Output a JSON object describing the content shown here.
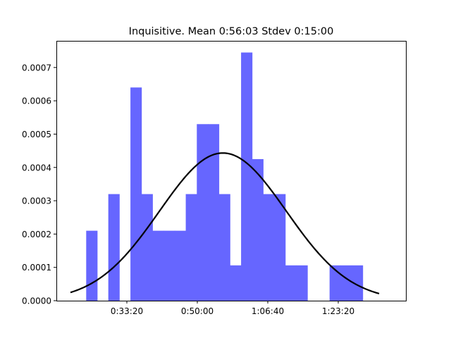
{
  "chart_data": {
    "type": "bar",
    "title": "Inquisitive. Mean 0:56:03 Stdev 0:15:00",
    "xlabel": "",
    "ylabel": "",
    "x_unit": "seconds",
    "xlim": [
      1000,
      5960
    ],
    "ylim": [
      0,
      0.00078
    ],
    "x_ticks": [
      {
        "value": 2000,
        "label": "0:33:20"
      },
      {
        "value": 3000,
        "label": "0:50:00"
      },
      {
        "value": 4000,
        "label": "1:06:40"
      },
      {
        "value": 5000,
        "label": "1:23:20"
      }
    ],
    "y_ticks": [
      {
        "value": 0,
        "label": "0.0000"
      },
      {
        "value": 0.0001,
        "label": "0.0001"
      },
      {
        "value": 0.0002,
        "label": "0.0002"
      },
      {
        "value": 0.0003,
        "label": "0.0003"
      },
      {
        "value": 0.0004,
        "label": "0.0004"
      },
      {
        "value": 0.0005,
        "label": "0.0005"
      },
      {
        "value": 0.0006,
        "label": "0.0006"
      },
      {
        "value": 0.0007,
        "label": "0.0007"
      }
    ],
    "bin_width": 157,
    "bins": [
      {
        "start": 1423,
        "value": 0.00021
      },
      {
        "start": 1580,
        "value": 0
      },
      {
        "start": 1737,
        "value": 0.00032
      },
      {
        "start": 1894,
        "value": 0
      },
      {
        "start": 2051,
        "value": 0.00064
      },
      {
        "start": 2208,
        "value": 0.00032
      },
      {
        "start": 2365,
        "value": 0.00021
      },
      {
        "start": 2522,
        "value": 0.00021
      },
      {
        "start": 2679,
        "value": 0.00021
      },
      {
        "start": 2836,
        "value": 0.00032
      },
      {
        "start": 2993,
        "value": 0.00053
      },
      {
        "start": 3150,
        "value": 0.00053
      },
      {
        "start": 3307,
        "value": 0.00032
      },
      {
        "start": 3464,
        "value": 0.000106
      },
      {
        "start": 3621,
        "value": 0.000745
      },
      {
        "start": 3778,
        "value": 0.000425
      },
      {
        "start": 3935,
        "value": 0.00032
      },
      {
        "start": 4092,
        "value": 0.00032
      },
      {
        "start": 4249,
        "value": 0.000106
      },
      {
        "start": 4406,
        "value": 0.000106
      },
      {
        "start": 4563,
        "value": 0
      },
      {
        "start": 4720,
        "value": 0
      },
      {
        "start": 4877,
        "value": 0.000106
      },
      {
        "start": 5034,
        "value": 0.000106
      },
      {
        "start": 5191,
        "value": 0.000106
      }
    ],
    "normal_curve": {
      "mean": 3363,
      "stdev": 900,
      "x_range": [
        1200,
        5580
      ]
    },
    "bar_color": "#6666ff",
    "curve_color": "#000000",
    "grid": false,
    "legend": "none"
  }
}
